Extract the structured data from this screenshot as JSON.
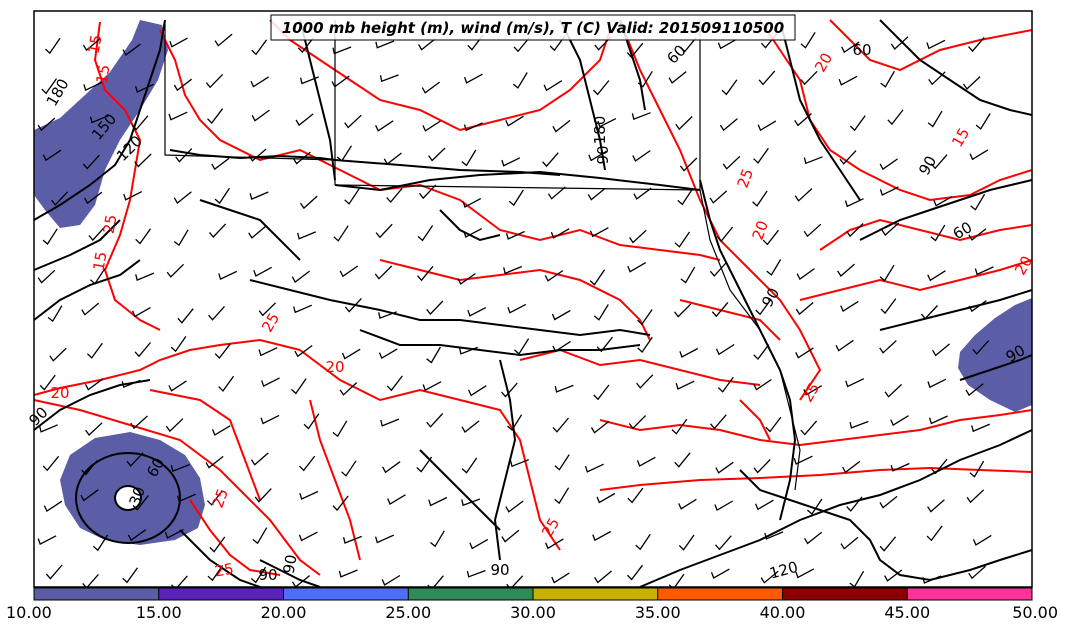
{
  "title": "1000 mb height (m), wind (m/s), T (C) Valid: 201509110500",
  "colorbar": {
    "ticks": [
      "10.00",
      "15.00",
      "20.00",
      "25.00",
      "30.00",
      "35.00",
      "40.00",
      "45.00",
      "50.00"
    ],
    "colors": [
      "#5b5ea6",
      "#5a22b8",
      "#4e6ef5",
      "#2e8b57",
      "#c9b000",
      "#ff5a00",
      "#8b0000",
      "#ff3399"
    ]
  },
  "height_labels": [
    "180",
    "150",
    "120",
    "90",
    "60",
    "30",
    "90",
    "90",
    "90",
    "60",
    "90",
    "180",
    "60",
    "90",
    "60",
    "90",
    "120",
    "90"
  ],
  "temperature_labels": [
    "15",
    "25",
    "15",
    "20",
    "25",
    "25",
    "20",
    "25",
    "20",
    "25",
    "25",
    "15",
    "20",
    "25",
    "20",
    "15"
  ],
  "colors": {
    "height_contour": "#000000",
    "temperature_contour": "#ff0000",
    "wind_shade": "#5b5ea6"
  }
}
